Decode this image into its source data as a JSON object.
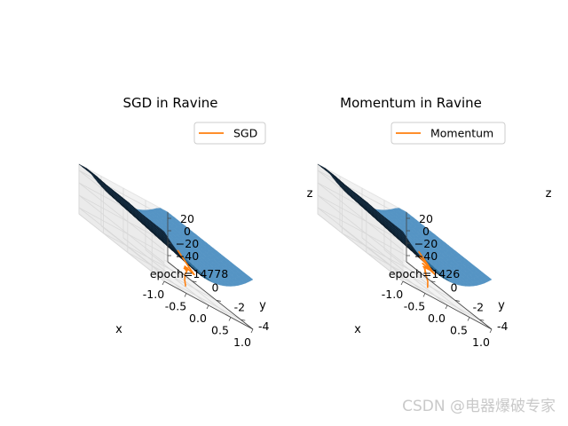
{
  "chart_data": [
    {
      "type": "surface3d",
      "title": "SGD in Ravine",
      "legend": "SGD",
      "legend_position": "top-right",
      "annotation": "epoch=14778",
      "xlabel": "x",
      "ylabel": "y",
      "zlabel": "z",
      "xlim": [
        -1.0,
        1.0
      ],
      "ylim": [
        -5,
        2
      ],
      "zlim": [
        -50,
        30
      ],
      "xticks": [
        "-1.0",
        "-0.5",
        "0.0",
        "0.5",
        "1.0"
      ],
      "yticks": [
        "-4",
        "-2",
        "0"
      ],
      "zticks": [
        "20",
        "0",
        "−20",
        "−40"
      ],
      "trajectory": [
        [
          -0.15,
          -3.0,
          2.0
        ],
        [
          0.1,
          -3.0,
          -15.0
        ],
        [
          0.5,
          -2.0,
          -28.0
        ],
        [
          0.7,
          -0.5,
          -30.0
        ],
        [
          0.58,
          -0.9,
          -32.0
        ],
        [
          0.74,
          -0.6,
          -30.0
        ],
        [
          0.6,
          -0.8,
          -32.5
        ],
        [
          0.73,
          -0.65,
          -30.5
        ],
        [
          0.62,
          -0.78,
          -33.0
        ],
        [
          0.72,
          -0.7,
          -31.0
        ],
        [
          0.63,
          -0.8,
          -33.5
        ],
        [
          0.7,
          -0.72,
          -32.0
        ],
        [
          0.64,
          -0.82,
          -34.0
        ],
        [
          0.69,
          -0.75,
          -32.5
        ],
        [
          0.4,
          -1.6,
          -38.0
        ],
        [
          0.15,
          -2.5,
          -43.0
        ],
        [
          -0.05,
          -3.3,
          -48.0
        ]
      ]
    },
    {
      "type": "surface3d",
      "title": "Momentum in Ravine",
      "legend": "Momentum",
      "legend_position": "top-right",
      "annotation": "epoch=1426",
      "xlabel": "x",
      "ylabel": "y",
      "zlabel": "z",
      "xlim": [
        -1.0,
        1.0
      ],
      "ylim": [
        -5,
        2
      ],
      "zlim": [
        -50,
        30
      ],
      "xticks": [
        "-1.0",
        "-0.5",
        "0.0",
        "0.5",
        "1.0"
      ],
      "yticks": [
        "-4",
        "-2",
        "0"
      ],
      "zticks": [
        "20",
        "0",
        "−20",
        "−40"
      ],
      "trajectory": [
        [
          -0.1,
          -3.0,
          2.0
        ],
        [
          0.25,
          -2.8,
          -18.0
        ],
        [
          -0.05,
          -2.9,
          -6.0
        ],
        [
          0.55,
          -2.0,
          -26.0
        ],
        [
          0.1,
          -2.6,
          -16.0
        ],
        [
          0.68,
          -1.2,
          -27.0
        ],
        [
          0.2,
          -2.3,
          -22.0
        ],
        [
          0.72,
          -0.7,
          -29.0
        ],
        [
          0.3,
          -2.0,
          -25.0
        ],
        [
          0.7,
          -0.6,
          -31.0
        ],
        [
          0.38,
          -1.8,
          -29.0
        ],
        [
          0.67,
          -0.7,
          -33.0
        ],
        [
          0.42,
          -1.7,
          -32.0
        ],
        [
          0.62,
          -0.9,
          -35.0
        ],
        [
          0.45,
          -1.6,
          -36.0
        ],
        [
          0.3,
          -2.3,
          -42.0
        ],
        [
          0.05,
          -3.2,
          -48.0
        ]
      ]
    }
  ],
  "watermark": "CSDN @电器爆破专家",
  "colors": {
    "surface_dark": "#16324a",
    "surface_mid": "#2d6c97",
    "surface_light": "#5594c4",
    "line": "#ff7f0e",
    "grid": "#d8d8d8",
    "pane": "#f2f2f2"
  }
}
